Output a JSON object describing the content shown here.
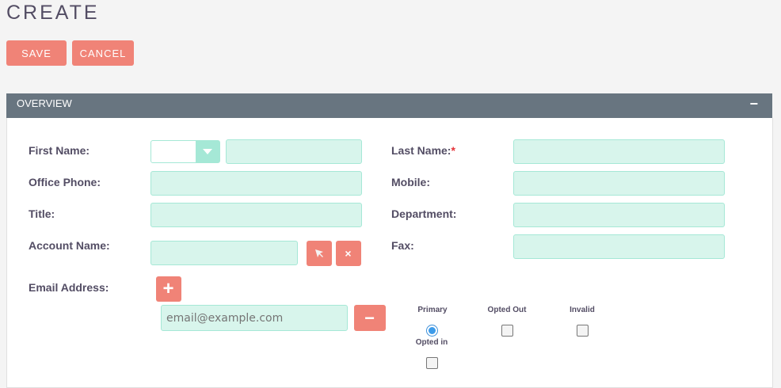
{
  "page": {
    "title": "CREATE"
  },
  "toolbar": {
    "save_label": "SAVE",
    "cancel_label": "CANCEL"
  },
  "panel": {
    "title": "OVERVIEW",
    "collapse_symbol": "−"
  },
  "fields": {
    "first_name": {
      "label": "First Name:",
      "value": "",
      "salutation": ""
    },
    "last_name": {
      "label": "Last Name:",
      "required": "*",
      "value": ""
    },
    "office_phone": {
      "label": "Office Phone:",
      "value": ""
    },
    "mobile": {
      "label": "Mobile:",
      "value": ""
    },
    "title": {
      "label": "Title:",
      "value": ""
    },
    "department": {
      "label": "Department:",
      "value": ""
    },
    "account_name": {
      "label": "Account Name:",
      "value": ""
    },
    "fax": {
      "label": "Fax:",
      "value": ""
    },
    "email": {
      "label": "Email Address:",
      "placeholder": "email@example.com",
      "value": "",
      "primary_label": "Primary",
      "opted_out_label": "Opted Out",
      "invalid_label": "Invalid",
      "opted_in_label": "Opted in",
      "primary": true,
      "opted_out": false,
      "invalid": false,
      "opted_in": false
    }
  },
  "colors": {
    "accent": "#f08377",
    "header": "#687580",
    "input_bg": "#d8f5ec",
    "input_border": "#a5e8d6"
  }
}
